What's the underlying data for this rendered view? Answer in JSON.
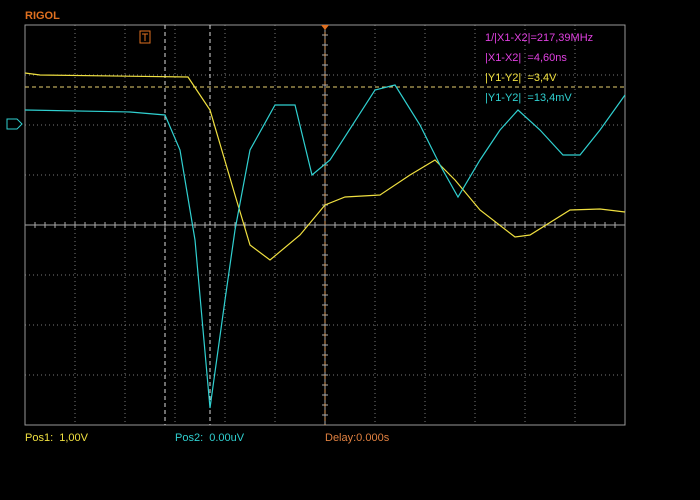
{
  "header": {
    "brand": "RIGOL"
  },
  "measurements": [
    "1/|X1-X2|=217,39MHz",
    "|X1-X2|  =4,60ns",
    "|Y1-Y2|  =3,4V",
    "|Y1-Y2|  =13,4mV"
  ],
  "status": {
    "pos1": "Pos1:  1,00V",
    "pos2": "Pos2:  0.00uV",
    "delay": "Delay:0.000s"
  }
}
